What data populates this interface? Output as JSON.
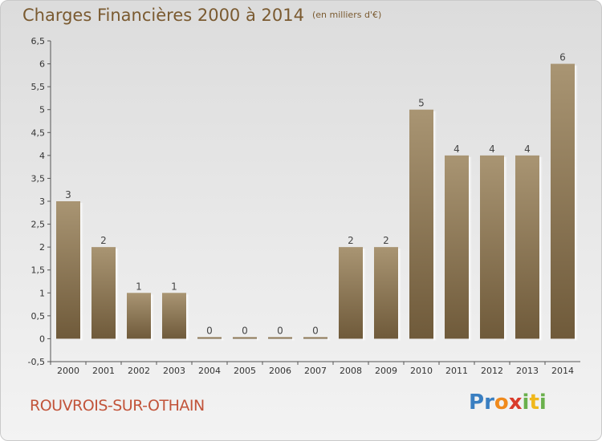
{
  "header": {
    "title": "Charges Financières 2000 à 2014",
    "subtitle": "(en milliers d'€)"
  },
  "footer": {
    "commune": "ROUVROIS-SUR-OTHAIN",
    "logo_letters": [
      "P",
      "r",
      "o",
      "x",
      "i",
      "t",
      "i"
    ],
    "logo_colors": [
      "#3a7fc1",
      "#3a7fc1",
      "#f08a1c",
      "#d93b2b",
      "#6ab04c",
      "#f0b81c",
      "#6ab04c"
    ]
  },
  "chart_data": {
    "type": "bar",
    "title": "Charges Financières 2000 à 2014",
    "subtitle": "(en milliers d'€)",
    "categories": [
      "2000",
      "2001",
      "2002",
      "2003",
      "2004",
      "2005",
      "2006",
      "2007",
      "2008",
      "2009",
      "2010",
      "2011",
      "2012",
      "2013",
      "2014"
    ],
    "values": [
      3,
      2,
      1,
      1,
      0,
      0,
      0,
      0,
      2,
      2,
      5,
      4,
      4,
      4,
      6
    ],
    "data_labels": [
      "3",
      "2",
      "1",
      "1",
      "0",
      "0",
      "0",
      "0",
      "2",
      "2",
      "5",
      "4",
      "4",
      "4",
      "6"
    ],
    "ylim": [
      -0.5,
      6.5
    ],
    "yticks": [
      "-0,5",
      "0",
      "0,5",
      "1",
      "1,5",
      "2",
      "2,5",
      "3",
      "3,5",
      "4",
      "4,5",
      "5",
      "5,5",
      "6",
      "6,5"
    ],
    "ytick_values": [
      -0.5,
      0,
      0.5,
      1,
      1.5,
      2,
      2.5,
      3,
      3.5,
      4,
      4.5,
      5,
      5.5,
      6,
      6.5
    ],
    "grid": false,
    "xlabel": "",
    "ylabel": "",
    "bar_color_top": "#a99573",
    "bar_color_bottom": "#6f5a3a"
  }
}
